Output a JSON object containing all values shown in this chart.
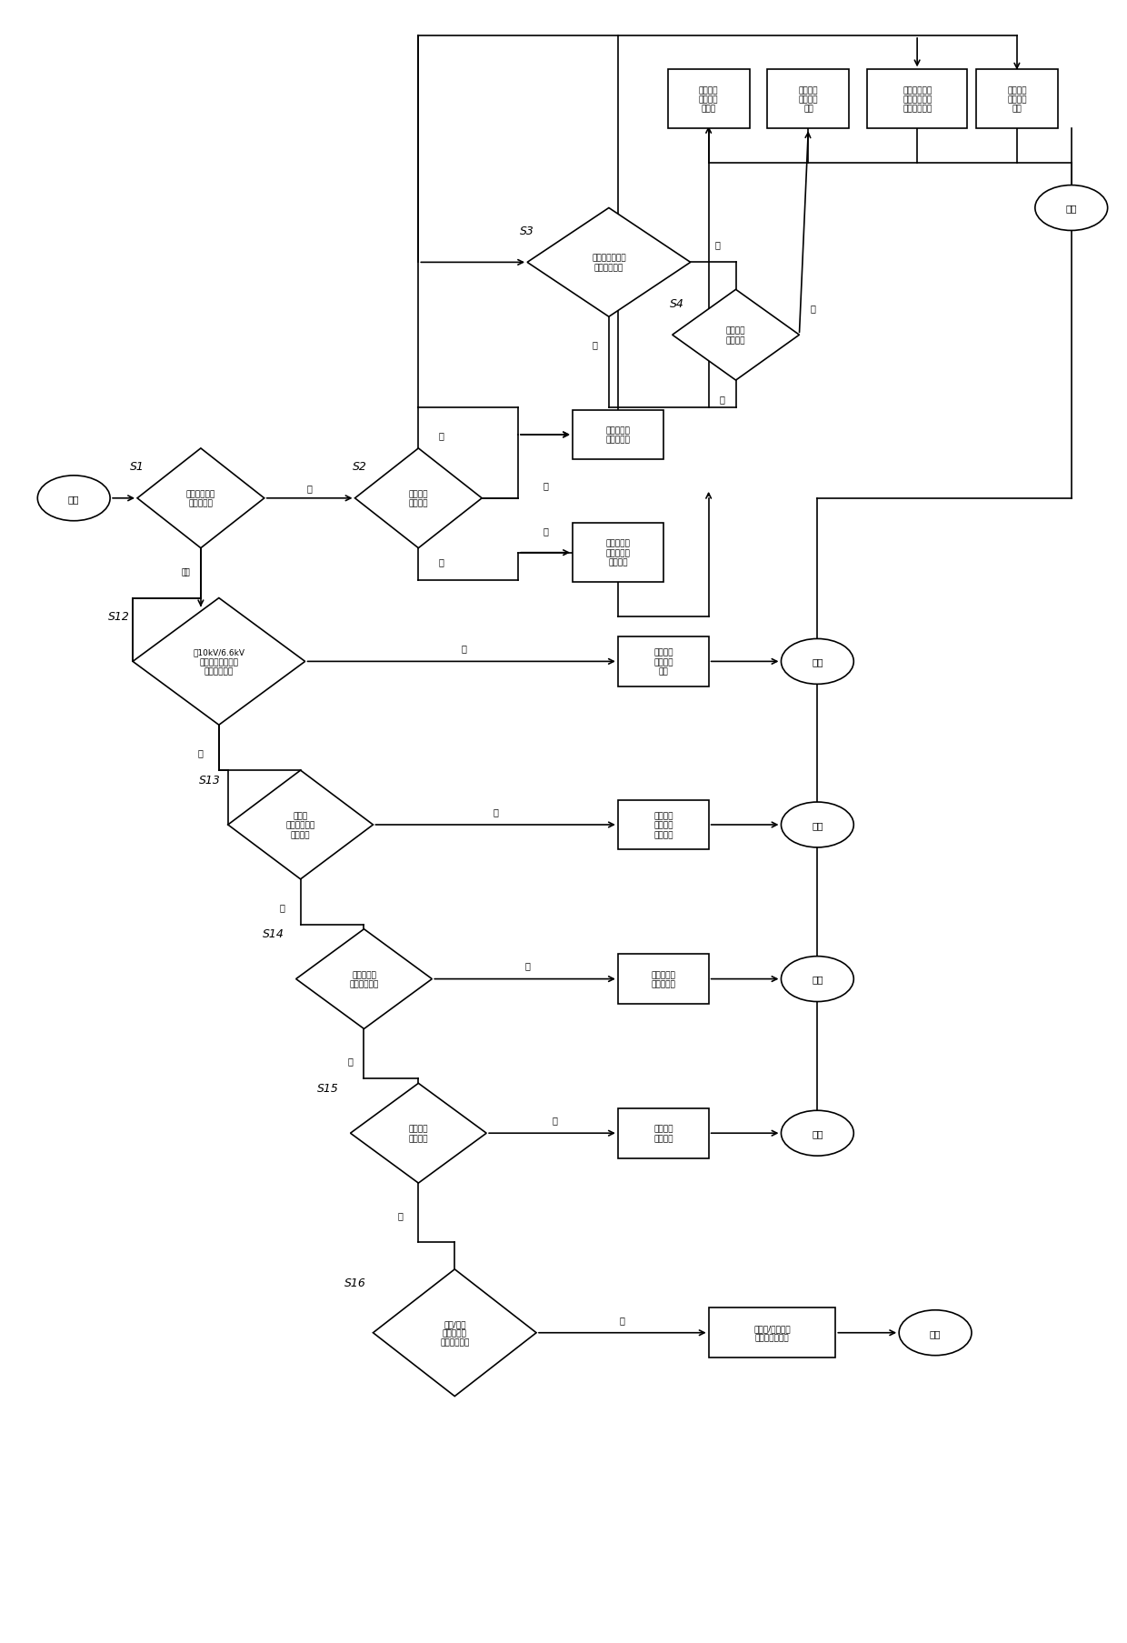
{
  "bg": "#ffffff",
  "lw": 1.2,
  "labels": {
    "start": "开始",
    "end": "结束",
    "S1_text": "核电系统是否\n为正常工况",
    "S2_text": "是否执行\n峰谷用价",
    "S3_text": "光伏或风电系统\n电量是否足够",
    "S4_text": "储能电量\n是否足够",
    "S12_text": "与10kV/6.6kV\n并线相连的外电网\n接口是否可用",
    "S13_text": "核电站\n厂外电源接口\n是否可用",
    "S14_text": "光伏或风电\n系统是否可用",
    "S15_text": "储能系统\n是否可用",
    "S16_text": "中压/低压\n移动发油机\n接口是否可用",
    "box_factory": "通过核电站\n厂用电充电",
    "box_offpeak": "通过核电站\n厂外电源在\n谷时充电",
    "box_pv_grid": "由光伏或\n风电向电\n网供电",
    "box_storage_grid": "由储能系\n统向电网\n供电",
    "box_nuclear_storage_grid": "由核电站厂用\n电通过储能系\n统向电网供电",
    "box_nuclear_grid": "由核电系\n统向电网\n供电",
    "box_ext_grid": "由外电网\n电源接口\n供电",
    "box_nuclear_ext": "由核电站\n厂外电源\n接口供电",
    "box_pv_supply": "由光伏或风\n电系统供电",
    "box_storage_supply": "由储能系\n统提供电",
    "box_diesel": "由中压/低压移动\n发油机接口供电",
    "yes": "是",
    "no": "否"
  }
}
